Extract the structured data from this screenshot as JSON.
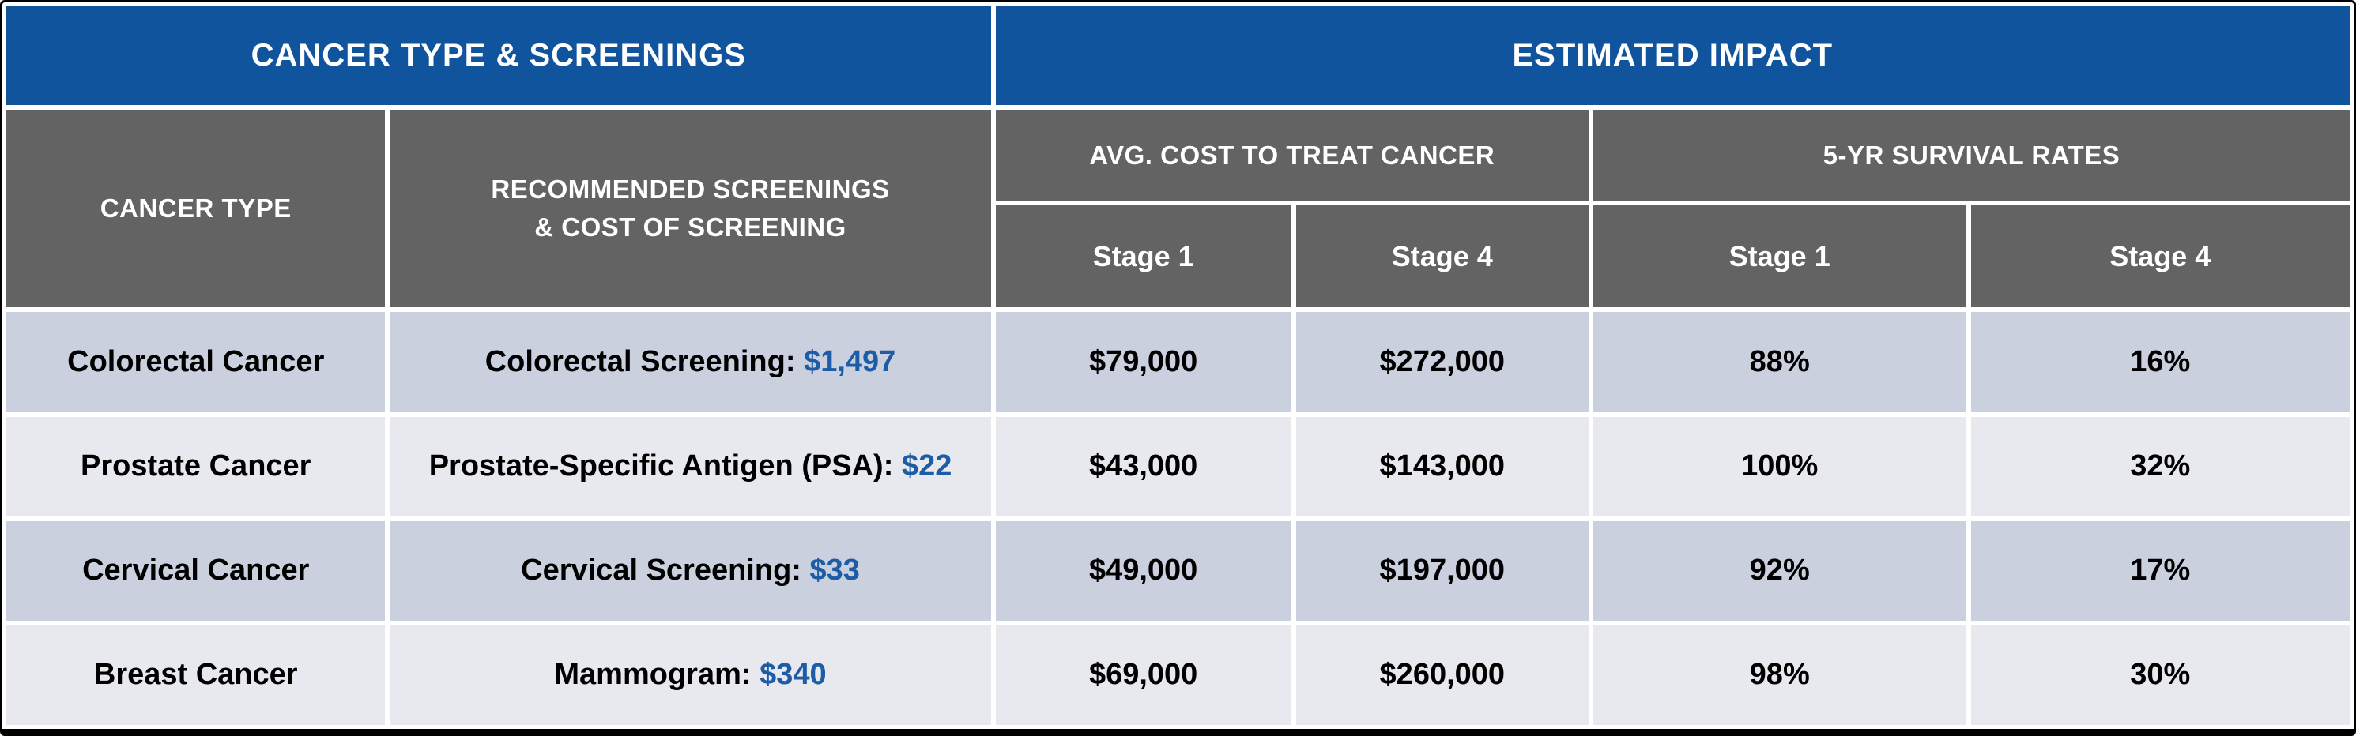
{
  "colors": {
    "header_blue": "#10549E",
    "header_gray": "#636363",
    "row_alt_dark": "#CAD0DE",
    "row_alt_light": "#E8E9EE",
    "accent_blue_text": "#1C5DA6",
    "header_text": "#FFFFFF",
    "body_text": "#000000",
    "outer_border": "#000000"
  },
  "table": {
    "top_headers": {
      "left": "CANCER TYPE & SCREENINGS",
      "right": "ESTIMATED IMPACT"
    },
    "column_headers": {
      "cancer_type": "CANCER TYPE",
      "screenings_line1": "RECOMMENDED SCREENINGS",
      "screenings_line2": "& COST OF SCREENING",
      "avg_cost_group": "AVG. COST TO TREAT CANCER",
      "survival_group": "5-YR SURVIVAL RATES",
      "stages": [
        "Stage 1",
        "Stage 4",
        "Stage 1",
        "Stage 4"
      ]
    },
    "rows": [
      {
        "cancer_type": "Colorectal Cancer",
        "screening_label": "Colorectal Screening:",
        "screening_cost": "$1,497",
        "cost_stage1": "$79,000",
        "cost_stage4": "$272,000",
        "survival_stage1": "88%",
        "survival_stage4": "16%"
      },
      {
        "cancer_type": "Prostate Cancer",
        "screening_label": "Prostate-Specific Antigen (PSA):",
        "screening_cost": "$22",
        "cost_stage1": "$43,000",
        "cost_stage4": "$143,000",
        "survival_stage1": "100%",
        "survival_stage4": "32%"
      },
      {
        "cancer_type": "Cervical Cancer",
        "screening_label": "Cervical Screening:",
        "screening_cost": "$33",
        "cost_stage1": "$49,000",
        "cost_stage4": "$197,000",
        "survival_stage1": "92%",
        "survival_stage4": "17%"
      },
      {
        "cancer_type": "Breast Cancer",
        "screening_label": "Mammogram:",
        "screening_cost": "$340",
        "cost_stage1": "$69,000",
        "cost_stage4": "$260,000",
        "survival_stage1": "98%",
        "survival_stage4": "30%"
      }
    ]
  },
  "chart_data": {
    "type": "table",
    "title": "Cancer Type & Screenings vs Estimated Impact",
    "columns": [
      "Cancer Type",
      "Recommended Screenings & Cost of Screening",
      "Avg. Cost to Treat Cancer — Stage 1",
      "Avg. Cost to Treat Cancer — Stage 4",
      "5-Yr Survival Rates — Stage 1",
      "5-Yr Survival Rates — Stage 4"
    ],
    "rows": [
      [
        "Colorectal Cancer",
        "Colorectal Screening: $1,497",
        "$79,000",
        "$272,000",
        "88%",
        "16%"
      ],
      [
        "Prostate Cancer",
        "Prostate-Specific Antigen (PSA): $22",
        "$43,000",
        "$143,000",
        "100%",
        "32%"
      ],
      [
        "Cervical Cancer",
        "Cervical Screening: $33",
        "$49,000",
        "$197,000",
        "92%",
        "17%"
      ],
      [
        "Breast Cancer",
        "Mammogram: $340",
        "$69,000",
        "$260,000",
        "98%",
        "30%"
      ]
    ]
  }
}
